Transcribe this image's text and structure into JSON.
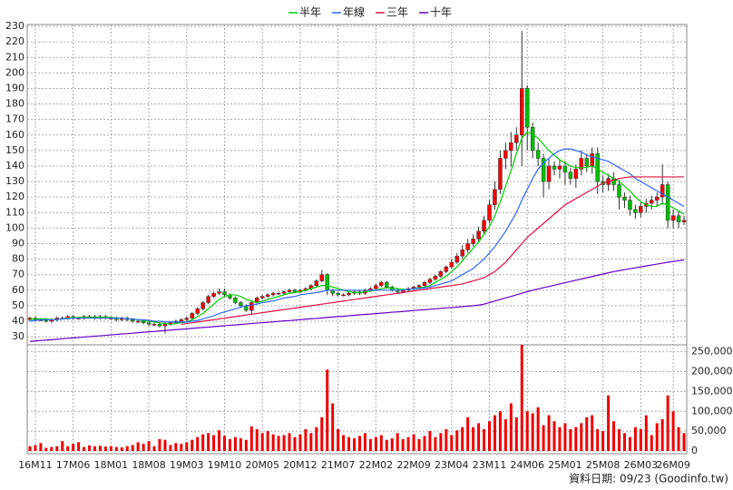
{
  "chart_data": [
    {
      "type": "candlestick",
      "categories": [
        null,
        "16M11",
        null,
        null,
        null,
        null,
        null,
        null,
        "17M06",
        null,
        null,
        null,
        null,
        null,
        null,
        "18M01",
        null,
        null,
        null,
        null,
        null,
        null,
        "18M08",
        null,
        null,
        null,
        null,
        null,
        null,
        "19M03",
        null,
        null,
        null,
        null,
        null,
        null,
        "19M10",
        null,
        null,
        null,
        null,
        null,
        null,
        "20M05",
        null,
        null,
        null,
        null,
        null,
        null,
        "20M12",
        null,
        null,
        null,
        null,
        null,
        null,
        "21M07",
        null,
        null,
        null,
        null,
        null,
        null,
        "22M02",
        null,
        null,
        null,
        null,
        null,
        null,
        "22M09",
        null,
        null,
        null,
        null,
        null,
        null,
        "23M04",
        null,
        null,
        null,
        null,
        null,
        null,
        "23M11",
        null,
        null,
        null,
        null,
        null,
        null,
        "24M06",
        null,
        null,
        null,
        null,
        null,
        null,
        "25M01",
        null,
        null,
        null,
        null,
        null,
        null,
        "25M08",
        null,
        null,
        null,
        null,
        null,
        null,
        "26M03",
        null,
        null,
        null,
        null,
        null,
        "26M09",
        null,
        null
      ],
      "open": [
        41,
        42,
        41,
        41,
        40,
        41,
        42,
        42,
        43,
        42,
        42,
        43,
        43,
        42,
        43,
        42,
        42,
        41,
        42,
        41,
        40,
        40,
        39,
        38,
        38,
        37,
        38,
        39,
        40,
        41,
        42,
        45,
        48,
        52,
        56,
        58,
        59,
        57,
        55,
        52,
        50,
        47,
        52,
        55,
        56,
        57,
        58,
        58,
        59,
        60,
        59,
        60,
        61,
        63,
        66,
        70,
        60,
        58,
        57,
        57,
        58,
        59,
        58,
        60,
        61,
        63,
        65,
        62,
        60,
        59,
        60,
        61,
        62,
        63,
        65,
        67,
        69,
        72,
        75,
        78,
        82,
        86,
        90,
        93,
        98,
        105,
        115,
        125,
        145,
        150,
        155,
        160,
        190,
        165,
        150,
        145,
        130,
        140,
        138,
        140,
        136,
        132,
        138,
        145,
        140,
        148,
        130,
        128,
        132,
        128,
        120,
        118,
        112,
        110,
        114,
        116,
        118,
        120,
        128,
        105,
        108,
        104
      ],
      "high": [
        43,
        43,
        42,
        42,
        42,
        43,
        43,
        44,
        44,
        43,
        44,
        44,
        44,
        44,
        44,
        43,
        43,
        43,
        43,
        42,
        41,
        41,
        40,
        39,
        39,
        39,
        40,
        41,
        42,
        43,
        46,
        49,
        53,
        57,
        59,
        61,
        61,
        58,
        56,
        53,
        51,
        53,
        56,
        57,
        58,
        59,
        59,
        60,
        61,
        61,
        61,
        62,
        64,
        67,
        73,
        71,
        61,
        59,
        58,
        59,
        60,
        60,
        61,
        62,
        64,
        66,
        66,
        63,
        61,
        61,
        62,
        63,
        64,
        66,
        68,
        70,
        73,
        76,
        80,
        84,
        89,
        93,
        96,
        101,
        108,
        118,
        130,
        150,
        155,
        162,
        165,
        227,
        192,
        168,
        155,
        148,
        145,
        143,
        144,
        143,
        139,
        141,
        150,
        148,
        152,
        152,
        134,
        135,
        136,
        131,
        123,
        121,
        115,
        117,
        119,
        121,
        123,
        141,
        130,
        112,
        111,
        108
      ],
      "low": [
        40,
        40,
        40,
        39,
        39,
        40,
        41,
        41,
        41,
        41,
        41,
        42,
        41,
        41,
        41,
        41,
        40,
        40,
        40,
        39,
        39,
        38,
        37,
        37,
        36,
        32,
        37,
        38,
        39,
        40,
        41,
        44,
        47,
        51,
        55,
        57,
        56,
        54,
        51,
        49,
        46,
        44,
        51,
        54,
        55,
        56,
        57,
        57,
        58,
        58,
        58,
        59,
        60,
        62,
        65,
        57,
        56,
        56,
        56,
        56,
        57,
        57,
        57,
        59,
        60,
        62,
        61,
        59,
        58,
        58,
        59,
        60,
        61,
        62,
        64,
        66,
        68,
        71,
        74,
        77,
        80,
        84,
        88,
        91,
        96,
        103,
        112,
        122,
        138,
        140,
        150,
        140,
        150,
        145,
        140,
        120,
        125,
        134,
        132,
        128,
        128,
        126,
        134,
        136,
        135,
        122,
        123,
        124,
        124,
        112,
        113,
        108,
        106,
        107,
        110,
        112,
        114,
        115,
        100,
        100,
        100,
        102
      ],
      "close": [
        42,
        41,
        41,
        40,
        41,
        42,
        42,
        43,
        42,
        42,
        43,
        43,
        42,
        43,
        42,
        42,
        41,
        42,
        41,
        40,
        40,
        39,
        38,
        38,
        37,
        38,
        39,
        40,
        41,
        42,
        45,
        48,
        52,
        56,
        58,
        59,
        57,
        55,
        52,
        50,
        47,
        52,
        55,
        56,
        57,
        58,
        58,
        59,
        60,
        59,
        60,
        61,
        63,
        66,
        70,
        60,
        58,
        57,
        57,
        58,
        59,
        58,
        60,
        61,
        63,
        65,
        62,
        60,
        59,
        60,
        61,
        62,
        63,
        65,
        67,
        69,
        72,
        75,
        78,
        82,
        86,
        90,
        93,
        98,
        105,
        115,
        125,
        145,
        150,
        155,
        160,
        190,
        165,
        150,
        145,
        130,
        140,
        138,
        140,
        136,
        132,
        138,
        145,
        140,
        148,
        130,
        128,
        132,
        128,
        120,
        118,
        112,
        110,
        114,
        116,
        118,
        120,
        128,
        105,
        108,
        104,
        105
      ],
      "up_color": "#ff0000",
      "down_color": "#00c000",
      "series": [
        {
          "name": "半年",
          "color": "#00cc00",
          "values": [
            41,
            41.5,
            41.5,
            41.5,
            41,
            41,
            41.5,
            42,
            42,
            42.5,
            42.5,
            42.5,
            42.5,
            42.5,
            42.5,
            42.5,
            42,
            42,
            41.5,
            41.5,
            41,
            40.5,
            40,
            39.5,
            39,
            38.5,
            38,
            38.5,
            39,
            39.5,
            41,
            43,
            45,
            48,
            51,
            54,
            56,
            57,
            57,
            56,
            54,
            53,
            52,
            53,
            54,
            55,
            56,
            57,
            58,
            58.5,
            59,
            60,
            61,
            62,
            63,
            63,
            62,
            61,
            60,
            59,
            58.5,
            58.5,
            59,
            59.5,
            60,
            61,
            61.5,
            61.5,
            61,
            60.5,
            60.5,
            61,
            61.5,
            62,
            63,
            65,
            67,
            69,
            72,
            75,
            79,
            83,
            87,
            91,
            96,
            101,
            108,
            117,
            127,
            137,
            148,
            158,
            162,
            160,
            158,
            154,
            150,
            147,
            144,
            142,
            140,
            139,
            139,
            139,
            140,
            138,
            136,
            134,
            132,
            130,
            127,
            124,
            120,
            117,
            115,
            114,
            114,
            116,
            115,
            113,
            111,
            109
          ]
        },
        {
          "name": "年線",
          "color": "#3366ff",
          "values": [
            40,
            40.5,
            41,
            41,
            41,
            41,
            41.5,
            41.5,
            42,
            42,
            42,
            42,
            42,
            42,
            42,
            42,
            42,
            42,
            41.5,
            41.5,
            41,
            41,
            40.5,
            40,
            40,
            39.5,
            39.5,
            39.5,
            39.5,
            39.5,
            40,
            40.5,
            41.5,
            42.5,
            43.5,
            45,
            46,
            47,
            48,
            49,
            50,
            50.5,
            51,
            52,
            52.5,
            53,
            54,
            55,
            55.5,
            56,
            57,
            57.5,
            58,
            58.5,
            59,
            60,
            60,
            60,
            60,
            60,
            60,
            60,
            60,
            60,
            60,
            60,
            60,
            60,
            60,
            60,
            60.5,
            61,
            61,
            61.5,
            62,
            63,
            64,
            65,
            66,
            68,
            70,
            72,
            74,
            77,
            80,
            84,
            88,
            93,
            98,
            104,
            110,
            118,
            125,
            132,
            138,
            142,
            145,
            148,
            150,
            151,
            151,
            150,
            149,
            147,
            146,
            145,
            144,
            143,
            141,
            139,
            137,
            135,
            132,
            130,
            128,
            126,
            124,
            122,
            120,
            118,
            116,
            114
          ]
        },
        {
          "name": "三年",
          "color": "#dd1144",
          "values": [
            null,
            null,
            null,
            null,
            null,
            null,
            null,
            null,
            null,
            null,
            null,
            null,
            null,
            null,
            null,
            null,
            null,
            null,
            null,
            null,
            null,
            null,
            null,
            null,
            null,
            null,
            null,
            null,
            38,
            38.5,
            39,
            39.5,
            40,
            40.5,
            41,
            41.5,
            42,
            42.5,
            43,
            43.5,
            44,
            44.5,
            45,
            45.5,
            46,
            46.5,
            47,
            47.5,
            48,
            48.5,
            49,
            49.5,
            50,
            50.5,
            51,
            51.5,
            52,
            52.5,
            53,
            53.5,
            54,
            54.5,
            55,
            55.5,
            56,
            56.5,
            57,
            57.5,
            58,
            58.5,
            59,
            59.5,
            60,
            60.5,
            61,
            61.5,
            62,
            62.5,
            63,
            63.5,
            64,
            65,
            66,
            67,
            68,
            70,
            72,
            75,
            78,
            82,
            86,
            90,
            94,
            97,
            100,
            103,
            106,
            109,
            112,
            115,
            117,
            119,
            121,
            123,
            125,
            127,
            129,
            130,
            131,
            132,
            132.5,
            133,
            133,
            133,
            133,
            133,
            133,
            133,
            133,
            133,
            133,
            133
          ]
        },
        {
          "name": "十年",
          "color": "#6600cc",
          "values": [
            27,
            27.3,
            27.6,
            27.8,
            28.1,
            28.4,
            28.7,
            29,
            29.2,
            29.5,
            29.8,
            30.1,
            30.4,
            30.6,
            30.9,
            31.2,
            31.5,
            31.8,
            32,
            32.3,
            32.6,
            32.9,
            33.2,
            33.4,
            33.7,
            34,
            34.3,
            34.6,
            34.8,
            35.1,
            35.4,
            35.7,
            36,
            36.2,
            36.5,
            36.8,
            37.1,
            37.4,
            37.6,
            37.9,
            38.2,
            38.5,
            38.8,
            39,
            39.3,
            39.6,
            39.9,
            40.2,
            40.4,
            40.7,
            41,
            41.3,
            41.6,
            41.8,
            42.1,
            42.4,
            42.7,
            43,
            43.2,
            43.5,
            43.8,
            44.1,
            44.4,
            44.6,
            44.9,
            45.2,
            45.5,
            45.8,
            46,
            46.3,
            46.6,
            46.9,
            47.2,
            47.4,
            47.7,
            48,
            48.3,
            48.6,
            48.8,
            49.1,
            49.4,
            49.7,
            50,
            50.4,
            51,
            52,
            53,
            54,
            55,
            56,
            57,
            58,
            59,
            60,
            60.8,
            61.6,
            62.4,
            63.2,
            64,
            64.8,
            65.6,
            66.4,
            67.2,
            68,
            68.8,
            69.6,
            70.4,
            71.2,
            72,
            72.6,
            73.2,
            73.8,
            74.4,
            75,
            75.6,
            76.2,
            76.8,
            77.4,
            78,
            78.5,
            79,
            79.4
          ]
        }
      ],
      "ylim": [
        24.8,
        231.2
      ],
      "yticks": [
        30,
        40,
        50,
        60,
        70,
        80,
        90,
        100,
        110,
        120,
        130,
        140,
        150,
        160,
        170,
        180,
        190,
        200,
        210,
        220,
        230
      ],
      "grid": true,
      "legend": "top"
    },
    {
      "type": "bar",
      "values": [
        12000,
        15000,
        20000,
        8000,
        10000,
        12000,
        25000,
        12000,
        18000,
        22000,
        10000,
        14000,
        12000,
        13000,
        11000,
        12000,
        10000,
        9000,
        12000,
        15000,
        22000,
        18000,
        25000,
        12000,
        30000,
        28000,
        15000,
        20000,
        18000,
        22000,
        28000,
        35000,
        42000,
        45000,
        40000,
        52000,
        38000,
        30000,
        35000,
        32000,
        28000,
        62000,
        55000,
        45000,
        50000,
        42000,
        38000,
        40000,
        45000,
        35000,
        42000,
        55000,
        45000,
        60000,
        85000,
        205000,
        120000,
        55000,
        40000,
        35000,
        32000,
        38000,
        45000,
        30000,
        35000,
        40000,
        28000,
        32000,
        45000,
        30000,
        35000,
        42000,
        30000,
        38000,
        50000,
        35000,
        45000,
        55000,
        40000,
        52000,
        60000,
        85000,
        60000,
        70000,
        55000,
        75000,
        90000,
        100000,
        80000,
        120000,
        85000,
        270000,
        100000,
        95000,
        110000,
        65000,
        90000,
        75000,
        60000,
        70000,
        55000,
        60000,
        70000,
        85000,
        90000,
        55000,
        50000,
        140000,
        75000,
        55000,
        45000,
        35000,
        60000,
        55000,
        90000,
        40000,
        70000,
        80000,
        140000,
        100000,
        60000,
        45000
      ],
      "color": "#ee0000",
      "ylim": [
        0,
        272000
      ],
      "yticks": [
        0,
        {
          "value": 50000,
          "label": "50,000"
        },
        {
          "value": 100000,
          "label": "100,000"
        },
        {
          "value": 150000,
          "label": "150,000"
        },
        {
          "value": 200000,
          "label": "200,000"
        },
        {
          "value": 250000,
          "label": "250,000"
        }
      ],
      "grid": true,
      "y_axis_side": "right"
    }
  ],
  "footer": "資料日期: 09/23 (Goodinfo.tw)"
}
